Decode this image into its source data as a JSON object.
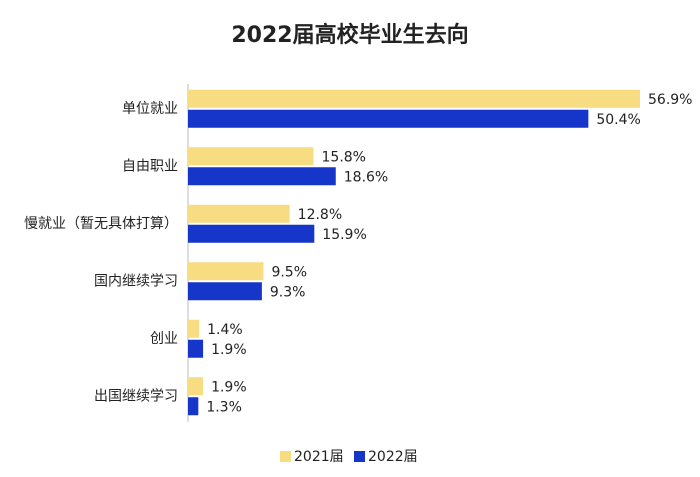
{
  "chart_data": {
    "type": "bar",
    "orientation": "horizontal",
    "title": "2022届高校毕业生去向",
    "categories": [
      "单位就业",
      "自由职业",
      "慢就业（暂无具体打算）",
      "国内继续学习",
      "创业",
      "出国继续学习"
    ],
    "series": [
      {
        "name": "2021届",
        "color": "#f7dc82",
        "values": [
          56.9,
          15.8,
          12.8,
          9.5,
          1.4,
          1.9
        ],
        "value_labels": [
          "56.9%",
          "15.8%",
          "12.8%",
          "9.5%",
          "1.4%",
          "1.9%"
        ]
      },
      {
        "name": "2022届",
        "color": "#1536c8",
        "values": [
          50.4,
          18.6,
          15.9,
          9.3,
          1.9,
          1.3
        ],
        "value_labels": [
          "50.4%",
          "18.6%",
          "15.9%",
          "9.3%",
          "1.9%",
          "1.3%"
        ]
      }
    ],
    "legend": "bottom"
  }
}
